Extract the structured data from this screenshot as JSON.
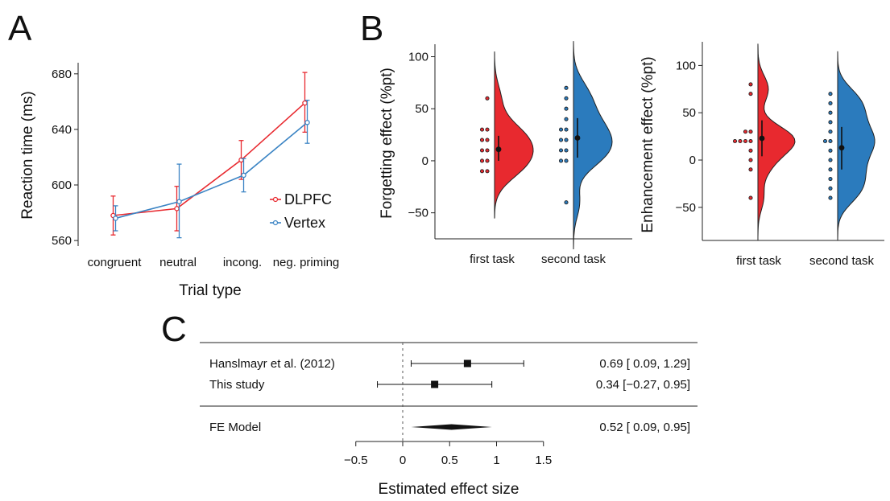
{
  "chart_data": [
    {
      "panel": "A",
      "type": "line",
      "xlabel": "Trial type",
      "ylabel": "Reaction time (ms)",
      "categories": [
        "congruent",
        "neutral",
        "incong.",
        "neg. priming"
      ],
      "ylim": [
        556,
        688
      ],
      "yticks": [
        "560",
        "600",
        "640",
        "680"
      ],
      "series": [
        {
          "name": "DLPFC",
          "color": "#e8292f",
          "values": [
            578,
            583,
            618,
            659
          ],
          "err_low": [
            564,
            567,
            604,
            638
          ],
          "err_high": [
            592,
            599,
            632,
            681
          ]
        },
        {
          "name": "Vertex",
          "color": "#3b84c4",
          "values": [
            576,
            588,
            607,
            645
          ],
          "err_low": [
            567,
            562,
            595,
            630
          ],
          "err_high": [
            585,
            615,
            619,
            661
          ]
        }
      ]
    },
    {
      "panel": "B-left",
      "type": "scatter",
      "ylabel": "Forgetting effect (%pt)",
      "categories": [
        "first task",
        "second task"
      ],
      "ylim": [
        -75,
        112
      ],
      "yticks": [
        "−50",
        "0",
        "50",
        "100"
      ],
      "groups": [
        {
          "category": "first task",
          "color": "#e8292f",
          "points": [
            60,
            30,
            30,
            20,
            20,
            10,
            10,
            0,
            0,
            -10,
            -10
          ],
          "mean": 11,
          "ci": [
            0,
            24
          ]
        },
        {
          "category": "second task",
          "color": "#2b7bbd",
          "points": [
            70,
            60,
            50,
            40,
            30,
            30,
            20,
            20,
            10,
            10,
            0,
            0,
            -40
          ],
          "mean": 22,
          "ci": [
            3,
            41
          ]
        }
      ]
    },
    {
      "panel": "B-right",
      "type": "scatter",
      "ylabel": "Enhancement effect (%pt)",
      "categories": [
        "first task",
        "second task"
      ],
      "ylim": [
        -85,
        125
      ],
      "yticks": [
        "−50",
        "0",
        "50",
        "100"
      ],
      "groups": [
        {
          "category": "first task",
          "color": "#e8292f",
          "points": [
            80,
            70,
            30,
            30,
            20,
            20,
            20,
            20,
            10,
            0,
            -10,
            -40
          ],
          "mean": 23,
          "ci": [
            4,
            42
          ]
        },
        {
          "category": "second task",
          "color": "#2b7bbd",
          "points": [
            70,
            60,
            50,
            40,
            30,
            20,
            20,
            10,
            0,
            -10,
            -20,
            -30,
            -40
          ],
          "mean": 13,
          "ci": [
            -10,
            35
          ]
        }
      ]
    },
    {
      "panel": "C",
      "type": "forest",
      "xlabel": "Estimated effect size",
      "xlim": [
        -0.5,
        1.5
      ],
      "xticks": [
        "−0.5",
        "0",
        "0.5",
        "1",
        "1.5"
      ],
      "studies": [
        {
          "label": "Hanslmayr et al. (2012)",
          "est": 0.69,
          "lo": 0.09,
          "hi": 1.29,
          "text": "0.69 [  0.09, 1.29]"
        },
        {
          "label": "This study",
          "est": 0.34,
          "lo": -0.27,
          "hi": 0.95,
          "text": "0.34 [−0.27, 0.95]"
        }
      ],
      "model": {
        "label": "FE Model",
        "est": 0.52,
        "lo": 0.09,
        "hi": 0.95,
        "text": "0.52 [  0.09, 0.95]"
      }
    }
  ],
  "panel_letters": {
    "a": "A",
    "b": "B",
    "c": "C"
  }
}
